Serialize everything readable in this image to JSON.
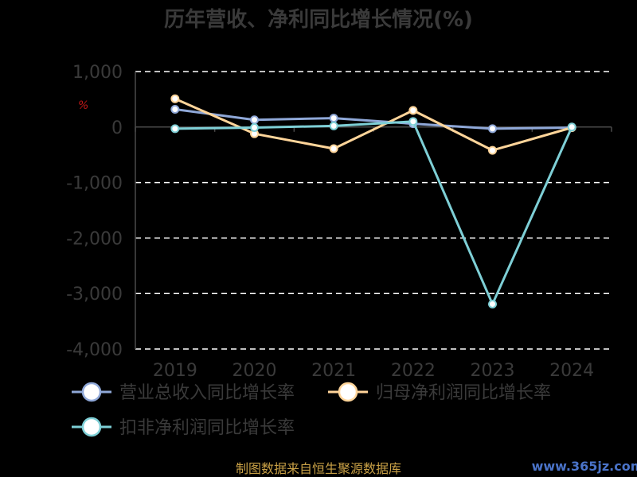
{
  "chart_data": {
    "type": "line",
    "title": "历年营收、净利同比增长情况(%)",
    "unit_mark": "%",
    "categories": [
      "2019",
      "2020",
      "2021",
      "2022",
      "2023",
      "2024"
    ],
    "ylim": [
      -4000,
      1000
    ],
    "yticks": [
      1000,
      0,
      -1000,
      -2000,
      -3000,
      -4000
    ],
    "ytick_labels": [
      "1,000",
      "0",
      "-1,000",
      "-2,000",
      "-3,000",
      "-4,000"
    ],
    "grid": true,
    "legend_position": "bottom",
    "series": [
      {
        "name": "营业总收入同比增长率",
        "color": "#8fa8d8",
        "values": [
          320,
          130,
          160,
          60,
          -30,
          -10
        ]
      },
      {
        "name": "归母净利润同比增长率",
        "color": "#ffd59a",
        "values": [
          510,
          -120,
          -390,
          300,
          -420,
          -10
        ]
      },
      {
        "name": "扣非净利润同比增长率",
        "color": "#7ecfd6",
        "values": [
          -30,
          -10,
          20,
          100,
          -3190,
          0
        ]
      }
    ]
  },
  "footer": {
    "source": "制图数据来自恒生聚源数据库",
    "watermark": "www.365jz.com"
  }
}
